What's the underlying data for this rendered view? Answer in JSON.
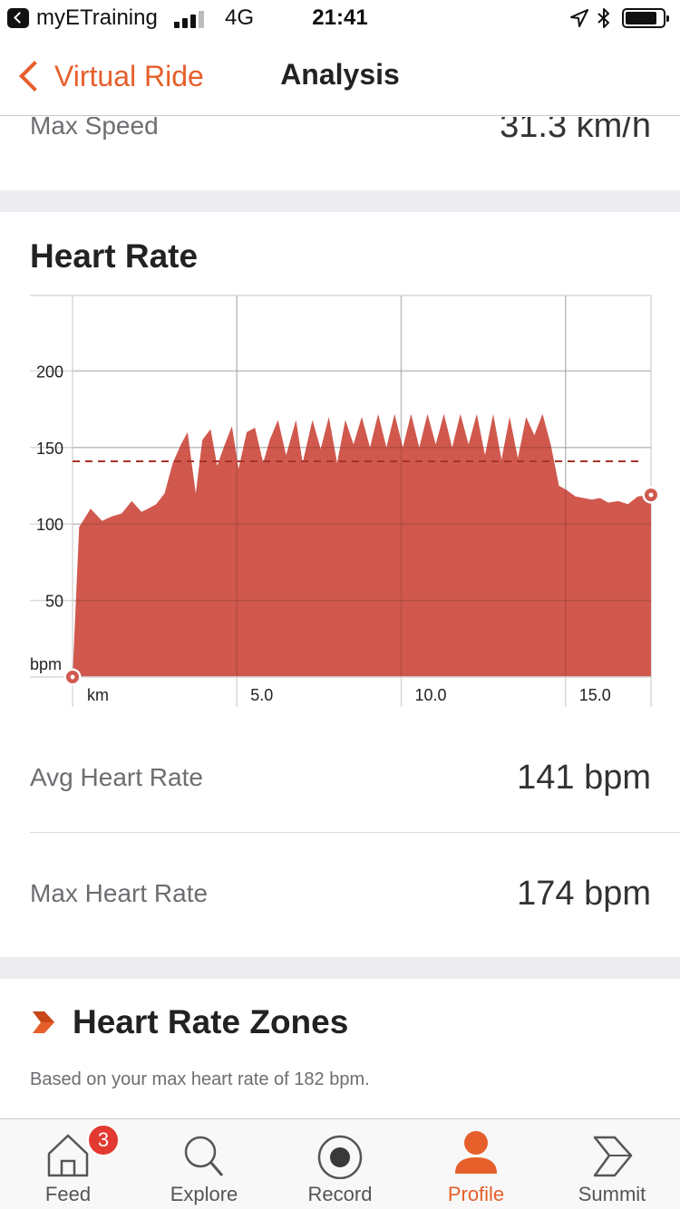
{
  "status_bar": {
    "app_name": "myETraining",
    "network": "4G",
    "time": "21:41"
  },
  "nav": {
    "back_label": "Virtual Ride",
    "title": "Analysis"
  },
  "max_speed": {
    "label": "Max Speed",
    "value": "31.3 km/h"
  },
  "heart_rate_section": {
    "title": "Heart Rate"
  },
  "chart_data": {
    "type": "area",
    "x_unit_label": "km",
    "y_unit_label": "bpm",
    "x_ticks": [
      "5.0",
      "10.0",
      "15.0"
    ],
    "y_ticks": [
      "50",
      "100",
      "150",
      "200"
    ],
    "xlim": [
      0,
      17.6
    ],
    "ylim": [
      0,
      250
    ],
    "average_line": 141,
    "color": "#d0584d",
    "avg_line_color": "#a8322a",
    "x": [
      0,
      0.2,
      0.55,
      0.9,
      1.2,
      1.5,
      1.8,
      2.1,
      2.3,
      2.55,
      2.8,
      3.05,
      3.3,
      3.5,
      3.75,
      3.95,
      4.2,
      4.4,
      4.6,
      4.85,
      5.05,
      5.3,
      5.55,
      5.8,
      6.0,
      6.25,
      6.5,
      6.8,
      7.0,
      7.3,
      7.55,
      7.8,
      8.05,
      8.3,
      8.55,
      8.8,
      9.05,
      9.3,
      9.55,
      9.8,
      10.05,
      10.3,
      10.55,
      10.8,
      11.05,
      11.3,
      11.55,
      11.8,
      12.05,
      12.3,
      12.55,
      12.8,
      13.05,
      13.3,
      13.55,
      13.8,
      14.05,
      14.3,
      14.55,
      14.8,
      15.05,
      15.3,
      15.55,
      15.8,
      16.05,
      16.3,
      16.6,
      16.9,
      17.2,
      17.6
    ],
    "y": [
      0,
      98,
      110,
      102,
      105,
      107,
      115,
      108,
      110,
      113,
      120,
      140,
      152,
      160,
      120,
      155,
      162,
      138,
      150,
      164,
      136,
      160,
      163,
      140,
      155,
      168,
      145,
      168,
      140,
      168,
      149,
      170,
      140,
      168,
      152,
      170,
      150,
      172,
      150,
      172,
      150,
      172,
      150,
      172,
      152,
      172,
      150,
      172,
      152,
      172,
      145,
      172,
      142,
      170,
      143,
      170,
      158,
      172,
      152,
      125,
      122,
      118,
      117,
      116,
      117,
      114,
      115,
      113,
      118,
      119
    ]
  },
  "stats": {
    "avg": {
      "label": "Avg Heart Rate",
      "value": "141 bpm"
    },
    "max": {
      "label": "Max Heart Rate",
      "value": "174 bpm"
    }
  },
  "zones": {
    "title": "Heart Rate Zones",
    "subtitle": "Based on your max heart rate of 182 bpm."
  },
  "tabs": [
    {
      "label": "Feed",
      "icon": "house-icon",
      "badge": "3"
    },
    {
      "label": "Explore",
      "icon": "search-icon"
    },
    {
      "label": "Record",
      "icon": "record-icon"
    },
    {
      "label": "Profile",
      "icon": "person-icon",
      "active": true
    },
    {
      "label": "Summit",
      "icon": "summit-chevron-icon"
    }
  ],
  "colors": {
    "accent": "#e65f2b",
    "chart_fill": "#d0584d",
    "badge": "#e23a30"
  }
}
